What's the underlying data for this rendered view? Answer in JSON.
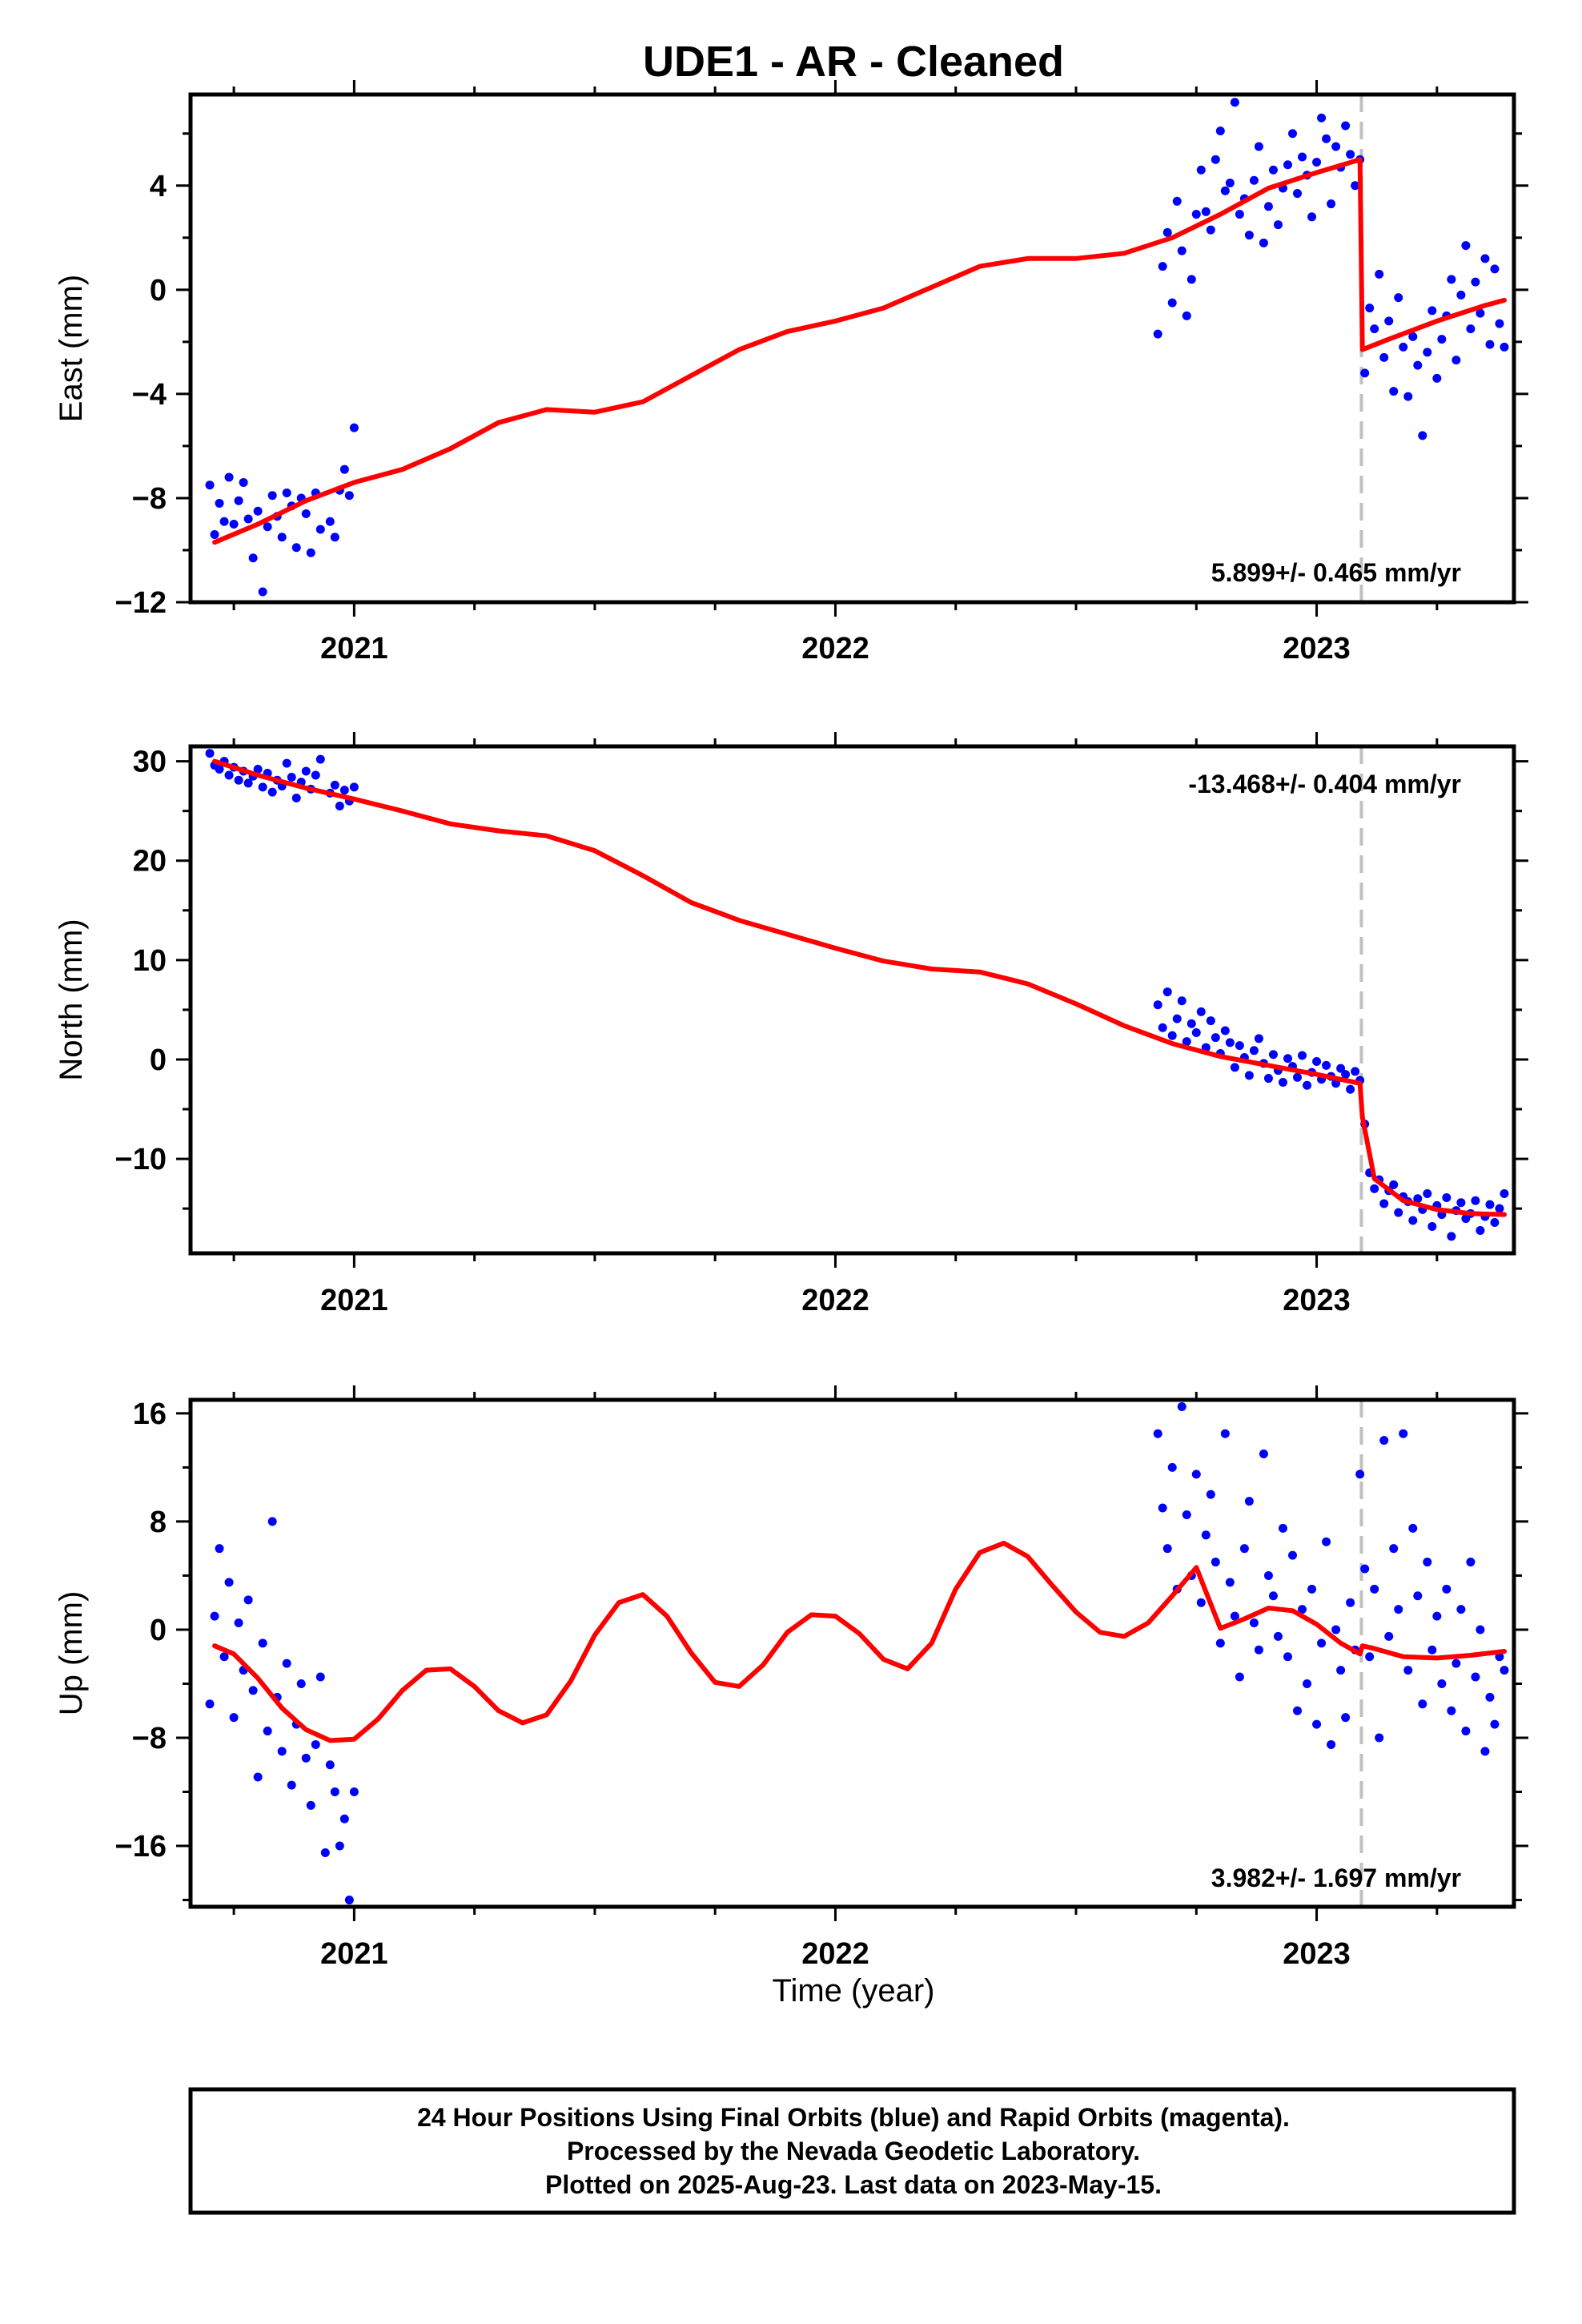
{
  "title": "UDE1  - AR - Cleaned",
  "xlabel": "Time (year)",
  "footer": {
    "line1": "24 Hour Positions Using Final Orbits (blue) and Rapid Orbits (magenta).",
    "line2": "Processed by the Nevada Geodetic Laboratory.",
    "line3": "Plotted on 2025-Aug-23. Last data on 2023-May-15."
  },
  "colors": {
    "points": "#0000ff",
    "model": "#ff0000",
    "break_line": "#c0c0c0",
    "frame": "#000000"
  },
  "chart_data": [
    {
      "type": "scatter",
      "component": "east",
      "ylabel": "East (mm)",
      "rate_label": "5.899+/- 0.465 mm/yr",
      "xlim": [
        2020.66,
        2023.41
      ],
      "ylim": [
        -12,
        7.5
      ],
      "xticks": [
        2021,
        2022,
        2023
      ],
      "yticks": [
        -12,
        -8,
        -4,
        0,
        4
      ],
      "break_epoch": 2023.093,
      "series": [
        {
          "role": "daily positions (final orbits)",
          "x": [
            2020.7,
            2020.71,
            2020.72,
            2020.73,
            2020.74,
            2020.75,
            2020.76,
            2020.77,
            2020.78,
            2020.79,
            2020.8,
            2020.81,
            2020.82,
            2020.83,
            2020.84,
            2020.85,
            2020.86,
            2020.87,
            2020.88,
            2020.89,
            2020.9,
            2020.91,
            2020.92,
            2020.93,
            2020.95,
            2020.96,
            2020.97,
            2020.98,
            2020.99,
            2021.0,
            2022.67,
            2022.68,
            2022.69,
            2022.7,
            2022.71,
            2022.72,
            2022.73,
            2022.74,
            2022.75,
            2022.76,
            2022.77,
            2022.78,
            2022.79,
            2022.8,
            2022.81,
            2022.82,
            2022.83,
            2022.84,
            2022.85,
            2022.86,
            2022.87,
            2022.88,
            2022.89,
            2022.9,
            2022.91,
            2022.92,
            2022.93,
            2022.94,
            2022.95,
            2022.96,
            2022.97,
            2022.98,
            2022.99,
            2023.0,
            2023.01,
            2023.02,
            2023.03,
            2023.04,
            2023.05,
            2023.06,
            2023.07,
            2023.08,
            2023.09,
            2023.1,
            2023.11,
            2023.12,
            2023.13,
            2023.14,
            2023.15,
            2023.16,
            2023.17,
            2023.18,
            2023.19,
            2023.2,
            2023.21,
            2023.22,
            2023.23,
            2023.24,
            2023.25,
            2023.26,
            2023.27,
            2023.28,
            2023.29,
            2023.3,
            2023.31,
            2023.32,
            2023.33,
            2023.34,
            2023.35,
            2023.36,
            2023.37,
            2023.38,
            2023.39
          ],
          "y": [
            -7.5,
            -9.4,
            -8.2,
            -8.9,
            -7.2,
            -9.0,
            -8.1,
            -7.4,
            -8.8,
            -10.3,
            -8.5,
            -11.6,
            -9.1,
            -7.9,
            -8.7,
            -9.5,
            -7.8,
            -8.3,
            -9.9,
            -8.0,
            -8.6,
            -10.1,
            -7.8,
            -9.2,
            -8.9,
            -9.5,
            -7.7,
            -6.9,
            -7.9,
            -5.3,
            -1.7,
            0.9,
            2.2,
            -0.5,
            3.4,
            1.5,
            -1.0,
            0.4,
            2.9,
            4.6,
            3.0,
            2.3,
            5.0,
            6.1,
            3.8,
            4.1,
            7.2,
            2.9,
            3.5,
            2.1,
            4.2,
            5.5,
            1.8,
            3.2,
            4.6,
            2.5,
            3.9,
            4.8,
            6.0,
            3.7,
            5.1,
            4.4,
            2.8,
            4.9,
            6.6,
            5.8,
            3.3,
            5.5,
            4.7,
            6.3,
            5.2,
            4.0,
            5.0,
            -3.2,
            -0.7,
            -1.5,
            0.6,
            -2.6,
            -1.2,
            -3.9,
            -0.3,
            -2.2,
            -4.1,
            -1.8,
            -2.9,
            -5.6,
            -2.4,
            -0.8,
            -3.4,
            -1.9,
            -1.0,
            0.4,
            -2.7,
            -0.2,
            1.7,
            -1.5,
            0.3,
            -0.9,
            1.2,
            -2.1,
            0.8,
            -1.3,
            -2.2
          ]
        },
        {
          "role": "model fit",
          "x": [
            2020.71,
            2020.8,
            2020.9,
            2021.0,
            2021.1,
            2021.2,
            2021.3,
            2021.4,
            2021.5,
            2021.6,
            2021.7,
            2021.8,
            2021.9,
            2022.0,
            2022.1,
            2022.2,
            2022.3,
            2022.4,
            2022.5,
            2022.6,
            2022.7,
            2022.8,
            2022.9,
            2023.0,
            2023.09,
            2023.095,
            2023.15,
            2023.25,
            2023.35,
            2023.39
          ],
          "y": [
            -9.7,
            -9.0,
            -8.1,
            -7.4,
            -6.9,
            -6.1,
            -5.1,
            -4.6,
            -4.7,
            -4.3,
            -3.3,
            -2.3,
            -1.6,
            -1.2,
            -0.7,
            0.1,
            0.9,
            1.2,
            1.2,
            1.4,
            2.0,
            2.9,
            3.9,
            4.5,
            5.0,
            -2.3,
            -1.9,
            -1.2,
            -0.6,
            -0.4
          ]
        }
      ]
    },
    {
      "type": "scatter",
      "component": "north",
      "ylabel": "North (mm)",
      "rate_label": "-13.468+/- 0.404 mm/yr",
      "xlim": [
        2020.66,
        2023.41
      ],
      "ylim": [
        -19.5,
        31.5
      ],
      "xticks": [
        2021,
        2022,
        2023
      ],
      "yticks": [
        -10,
        0,
        10,
        20,
        30
      ],
      "break_epoch": 2023.093,
      "series": [
        {
          "role": "daily positions (final orbits)",
          "x": [
            2020.7,
            2020.71,
            2020.72,
            2020.73,
            2020.74,
            2020.75,
            2020.76,
            2020.77,
            2020.78,
            2020.79,
            2020.8,
            2020.81,
            2020.82,
            2020.83,
            2020.84,
            2020.85,
            2020.86,
            2020.87,
            2020.88,
            2020.89,
            2020.9,
            2020.91,
            2020.92,
            2020.93,
            2020.95,
            2020.96,
            2020.97,
            2020.98,
            2020.99,
            2021.0,
            2022.67,
            2022.68,
            2022.69,
            2022.7,
            2022.71,
            2022.72,
            2022.73,
            2022.74,
            2022.75,
            2022.76,
            2022.77,
            2022.78,
            2022.79,
            2022.8,
            2022.81,
            2022.82,
            2022.83,
            2022.84,
            2022.85,
            2022.86,
            2022.87,
            2022.88,
            2022.89,
            2022.9,
            2022.91,
            2022.92,
            2022.93,
            2022.94,
            2022.95,
            2022.96,
            2022.97,
            2022.98,
            2022.99,
            2023.0,
            2023.01,
            2023.02,
            2023.03,
            2023.04,
            2023.05,
            2023.06,
            2023.07,
            2023.08,
            2023.09,
            2023.1,
            2023.11,
            2023.12,
            2023.13,
            2023.14,
            2023.15,
            2023.16,
            2023.17,
            2023.18,
            2023.19,
            2023.2,
            2023.21,
            2023.22,
            2023.23,
            2023.24,
            2023.25,
            2023.26,
            2023.27,
            2023.28,
            2023.29,
            2023.3,
            2023.31,
            2023.32,
            2023.33,
            2023.34,
            2023.35,
            2023.36,
            2023.37,
            2023.38,
            2023.39
          ],
          "y": [
            30.8,
            29.6,
            29.2,
            30.0,
            28.6,
            29.4,
            28.1,
            29.0,
            27.8,
            28.5,
            29.2,
            27.4,
            28.8,
            26.9,
            28.1,
            27.5,
            29.8,
            28.4,
            26.3,
            27.9,
            29.0,
            27.2,
            28.6,
            30.2,
            26.8,
            27.6,
            25.5,
            27.1,
            26.0,
            27.4,
            5.5,
            3.2,
            6.8,
            2.4,
            4.1,
            5.9,
            1.8,
            3.6,
            2.7,
            4.8,
            1.2,
            3.9,
            2.2,
            0.6,
            2.9,
            1.7,
            -0.8,
            1.4,
            0.2,
            -1.6,
            0.9,
            2.1,
            -0.4,
            -1.9,
            0.5,
            -1.1,
            -2.3,
            0.1,
            -0.7,
            -1.8,
            0.4,
            -2.6,
            -1.3,
            -0.2,
            -2.0,
            -0.6,
            -1.7,
            -2.4,
            -0.9,
            -1.5,
            -3.0,
            -1.2,
            -2.1,
            -6.5,
            -11.4,
            -13.0,
            -12.1,
            -14.5,
            -13.2,
            -12.6,
            -15.4,
            -13.8,
            -14.3,
            -16.2,
            -14.0,
            -15.1,
            -13.5,
            -16.8,
            -14.7,
            -15.6,
            -13.9,
            -17.8,
            -15.2,
            -14.4,
            -16.0,
            -15.5,
            -14.2,
            -17.2,
            -15.8,
            -14.6,
            -16.4,
            -15.0,
            -13.5
          ]
        },
        {
          "role": "model fit",
          "x": [
            2020.71,
            2020.8,
            2020.9,
            2021.0,
            2021.1,
            2021.2,
            2021.3,
            2021.4,
            2021.5,
            2021.6,
            2021.7,
            2021.8,
            2021.9,
            2022.0,
            2022.1,
            2022.2,
            2022.3,
            2022.4,
            2022.5,
            2022.6,
            2022.7,
            2022.8,
            2022.9,
            2023.0,
            2023.09,
            2023.095,
            2023.12,
            2023.18,
            2023.25,
            2023.32,
            2023.39
          ],
          "y": [
            30.0,
            28.6,
            27.3,
            26.2,
            25.0,
            23.7,
            23.0,
            22.5,
            21.0,
            18.5,
            15.8,
            14.0,
            12.6,
            11.2,
            9.9,
            9.1,
            8.8,
            7.6,
            5.6,
            3.4,
            1.6,
            0.3,
            -0.6,
            -1.5,
            -2.4,
            -5.8,
            -12.0,
            -14.2,
            -15.1,
            -15.5,
            -15.6
          ]
        }
      ]
    },
    {
      "type": "scatter",
      "component": "up",
      "ylabel": "Up (mm)",
      "rate_label": "3.982+/- 1.697 mm/yr",
      "xlim": [
        2020.66,
        2023.41
      ],
      "ylim": [
        -20.5,
        17
      ],
      "xticks": [
        2021,
        2022,
        2023
      ],
      "yticks": [
        -16,
        -8,
        0,
        8,
        16
      ],
      "break_epoch": 2023.093,
      "series": [
        {
          "role": "daily positions (final orbits)",
          "x": [
            2020.7,
            2020.71,
            2020.72,
            2020.73,
            2020.74,
            2020.75,
            2020.76,
            2020.77,
            2020.78,
            2020.79,
            2020.8,
            2020.81,
            2020.82,
            2020.83,
            2020.84,
            2020.85,
            2020.86,
            2020.87,
            2020.88,
            2020.89,
            2020.9,
            2020.91,
            2020.92,
            2020.93,
            2020.94,
            2020.95,
            2020.96,
            2020.97,
            2020.98,
            2020.99,
            2021.0,
            2022.67,
            2022.68,
            2022.69,
            2022.7,
            2022.71,
            2022.72,
            2022.73,
            2022.74,
            2022.75,
            2022.76,
            2022.77,
            2022.78,
            2022.79,
            2022.8,
            2022.81,
            2022.82,
            2022.83,
            2022.84,
            2022.85,
            2022.86,
            2022.87,
            2022.88,
            2022.89,
            2022.9,
            2022.91,
            2022.92,
            2022.93,
            2022.94,
            2022.95,
            2022.96,
            2022.97,
            2022.98,
            2022.99,
            2023.0,
            2023.01,
            2023.02,
            2023.03,
            2023.04,
            2023.05,
            2023.06,
            2023.07,
            2023.08,
            2023.09,
            2023.1,
            2023.11,
            2023.12,
            2023.13,
            2023.14,
            2023.15,
            2023.16,
            2023.17,
            2023.18,
            2023.19,
            2023.2,
            2023.21,
            2023.22,
            2023.23,
            2023.24,
            2023.25,
            2023.26,
            2023.27,
            2023.28,
            2023.29,
            2023.3,
            2023.31,
            2023.32,
            2023.33,
            2023.34,
            2023.35,
            2023.36,
            2023.37,
            2023.38,
            2023.39
          ],
          "y": [
            -5.5,
            1.0,
            6.0,
            -2.0,
            3.5,
            -6.5,
            0.5,
            -3.0,
            2.2,
            -4.5,
            -10.9,
            -1.0,
            -7.5,
            8.0,
            -5.0,
            -9.0,
            -2.5,
            -11.5,
            -7.0,
            -4.0,
            -9.5,
            -13.0,
            -8.5,
            -3.5,
            -16.5,
            -10.0,
            -12.0,
            -16.0,
            -14.0,
            -20.0,
            -12.0,
            14.5,
            9.0,
            6.0,
            12.0,
            3.0,
            16.5,
            8.5,
            4.0,
            11.5,
            2.0,
            7.0,
            10.0,
            5.0,
            -1.0,
            14.5,
            3.5,
            1.0,
            -3.5,
            6.0,
            9.5,
            0.5,
            -1.5,
            13.0,
            4.0,
            2.5,
            -0.5,
            7.5,
            -2.0,
            5.5,
            -6.0,
            1.5,
            -4.0,
            3.0,
            -7.0,
            -1.0,
            6.5,
            -8.5,
            0.0,
            -3.0,
            -6.5,
            2.0,
            -1.5,
            11.5,
            4.5,
            -2.0,
            3.0,
            -8.0,
            14.0,
            -0.5,
            6.0,
            1.5,
            14.5,
            -3.0,
            7.5,
            2.5,
            -5.5,
            5.0,
            -1.5,
            1.0,
            -4.0,
            3.0,
            -6.0,
            -2.5,
            1.5,
            -7.5,
            5.0,
            -3.5,
            0.0,
            -9.0,
            -5.0,
            -7.0,
            -2.0,
            -3.0
          ]
        },
        {
          "role": "model fit",
          "x": [
            2020.71,
            2020.75,
            2020.8,
            2020.85,
            2020.9,
            2020.95,
            2021.0,
            2021.05,
            2021.1,
            2021.15,
            2021.2,
            2021.25,
            2021.3,
            2021.35,
            2021.4,
            2021.45,
            2021.5,
            2021.55,
            2021.6,
            2021.65,
            2021.7,
            2021.75,
            2021.8,
            2021.85,
            2021.9,
            2021.95,
            2022.0,
            2022.05,
            2022.1,
            2022.15,
            2022.2,
            2022.25,
            2022.3,
            2022.35,
            2022.4,
            2022.45,
            2022.5,
            2022.55,
            2022.6,
            2022.65,
            2022.7,
            2022.75,
            2022.8,
            2022.85,
            2022.9,
            2022.95,
            2023.0,
            2023.05,
            2023.09,
            2023.095,
            2023.12,
            2023.18,
            2023.25,
            2023.32,
            2023.39
          ],
          "y": [
            -1.2,
            -1.8,
            -3.6,
            -5.8,
            -7.4,
            -8.2,
            -8.1,
            -6.6,
            -4.5,
            -3.0,
            -2.9,
            -4.2,
            -6.0,
            -6.9,
            -6.3,
            -3.8,
            -0.4,
            2.0,
            2.6,
            1.0,
            -1.7,
            -3.9,
            -4.2,
            -2.6,
            -0.2,
            1.1,
            1.0,
            -0.3,
            -2.2,
            -2.9,
            -1.0,
            3.0,
            5.7,
            6.4,
            5.4,
            3.3,
            1.3,
            -0.2,
            -0.5,
            0.5,
            2.5,
            4.6,
            0.1,
            0.8,
            1.6,
            1.4,
            0.4,
            -1.0,
            -1.8,
            -1.2,
            -1.4,
            -2.0,
            -2.1,
            -1.9,
            -1.6
          ]
        }
      ]
    }
  ]
}
